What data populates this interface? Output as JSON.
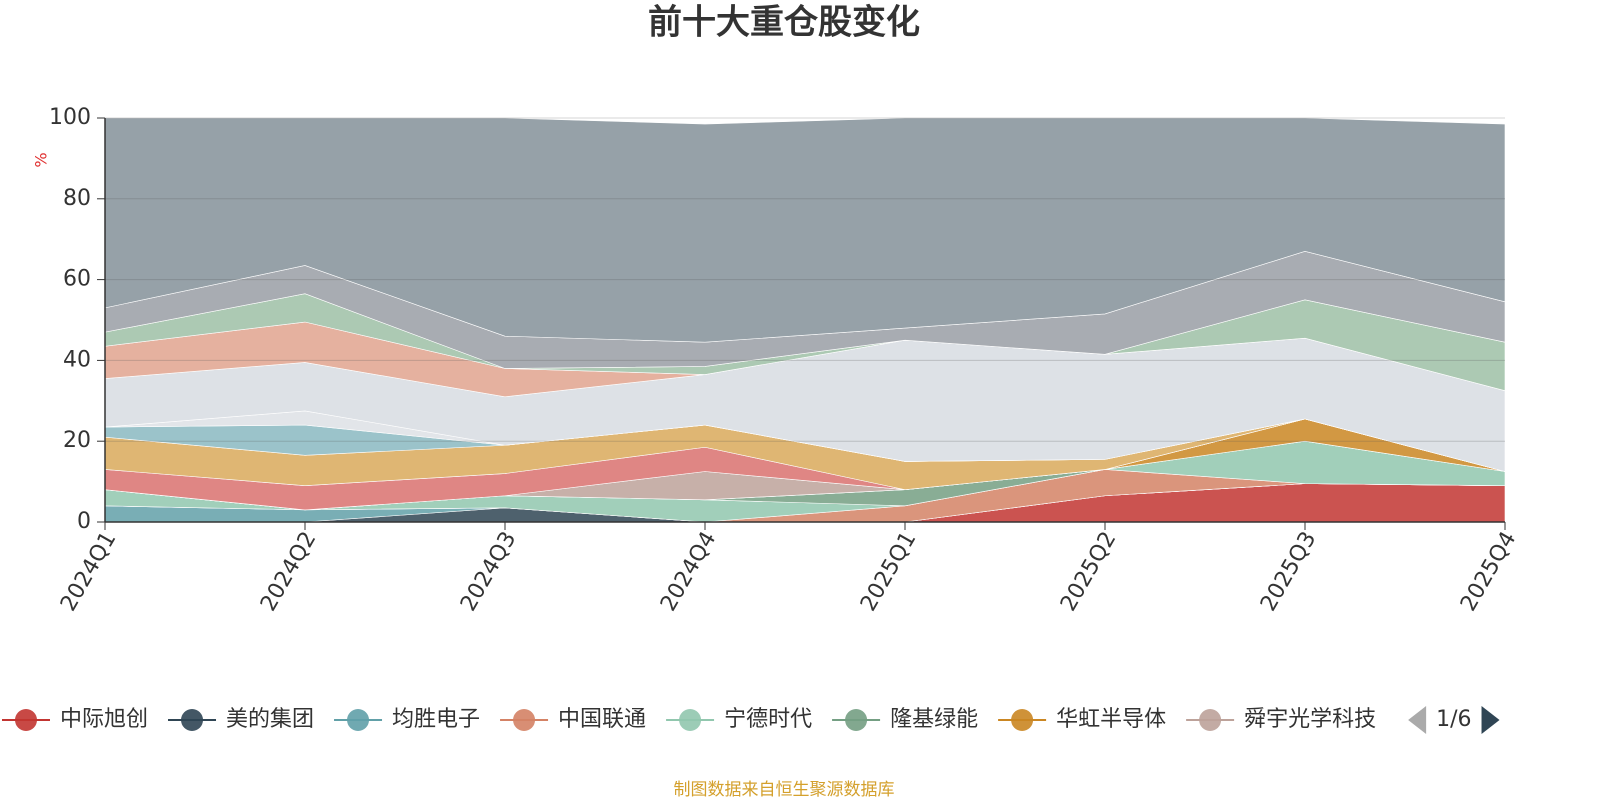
{
  "chart_data": {
    "type": "stacked_area",
    "title": "前十大重仓股变化",
    "y_axis_label": "%",
    "categories": [
      "2024Q1",
      "2024Q2",
      "2024Q3",
      "2024Q4",
      "2025Q1",
      "2025Q2",
      "2025Q3",
      "2025Q4"
    ],
    "ylim": [
      0,
      100
    ],
    "yticks": [
      0,
      20,
      40,
      60,
      80,
      100
    ],
    "grid": true,
    "series": [
      {
        "name": "中际旭创",
        "color": "#c23531",
        "values": [
          0,
          0,
          0,
          0,
          0,
          6.5,
          9.5,
          9
        ]
      },
      {
        "name": "美的集团",
        "color": "#2f4554",
        "values": [
          0,
          0,
          3.5,
          0,
          0,
          0,
          0,
          0
        ]
      },
      {
        "name": "均胜电子",
        "color": "#61a0a8",
        "values": [
          4,
          3,
          0,
          0,
          0,
          0,
          0,
          0
        ]
      },
      {
        "name": "中国联通",
        "color": "#d48265",
        "values": [
          0,
          0,
          0,
          0,
          4,
          6.5,
          0,
          0
        ]
      },
      {
        "name": "宁德时代",
        "color": "#91c7ae",
        "values": [
          4,
          0,
          3,
          5.5,
          0,
          0,
          10.5,
          3.5
        ]
      },
      {
        "name": "隆基绿能",
        "color": "#749f83",
        "values": [
          0,
          0,
          0,
          0,
          4,
          0,
          0,
          0
        ]
      },
      {
        "name": "华虹半导体",
        "color": "#ca8622",
        "values": [
          0,
          0,
          0,
          0,
          0,
          0,
          5.5,
          0
        ]
      },
      {
        "name": "舜宇光学科技",
        "color": "#bda29a",
        "values": [
          0,
          0,
          0,
          7,
          0,
          0,
          0,
          0
        ]
      },
      {
        "color": "#d9716e",
        "values": [
          5,
          6,
          5.5,
          6,
          0,
          0,
          0,
          0
        ]
      },
      {
        "color": "#d9a95a",
        "values": [
          8,
          7.5,
          7,
          5.5,
          7,
          2.5,
          0,
          0
        ]
      },
      {
        "color": "#8ab8c1",
        "values": [
          2.5,
          7.5,
          0,
          0,
          0,
          0,
          0,
          0
        ]
      },
      {
        "color": "#dde0e5",
        "values": [
          0,
          3.5,
          0,
          0,
          0,
          0,
          0,
          0
        ]
      },
      {
        "color": "#d7dce2",
        "values": [
          12,
          12,
          12,
          12.5,
          30,
          26,
          20,
          20
        ]
      },
      {
        "color": "#e0a38e",
        "values": [
          8,
          10,
          7,
          0,
          0,
          0,
          0,
          0
        ]
      },
      {
        "color": "#9dbfa6",
        "values": [
          3.5,
          7,
          0,
          2,
          0,
          0,
          9.5,
          12
        ]
      },
      {
        "color": "#999da4",
        "values": [
          6,
          7,
          8,
          6,
          3,
          10,
          12,
          10
        ]
      },
      {
        "color": "#849199",
        "values": [
          47,
          36.5,
          54,
          54,
          52,
          48.5,
          33,
          44
        ]
      }
    ],
    "legend_page": "1/6",
    "source": "制图数据来自恒生聚源数据库"
  }
}
